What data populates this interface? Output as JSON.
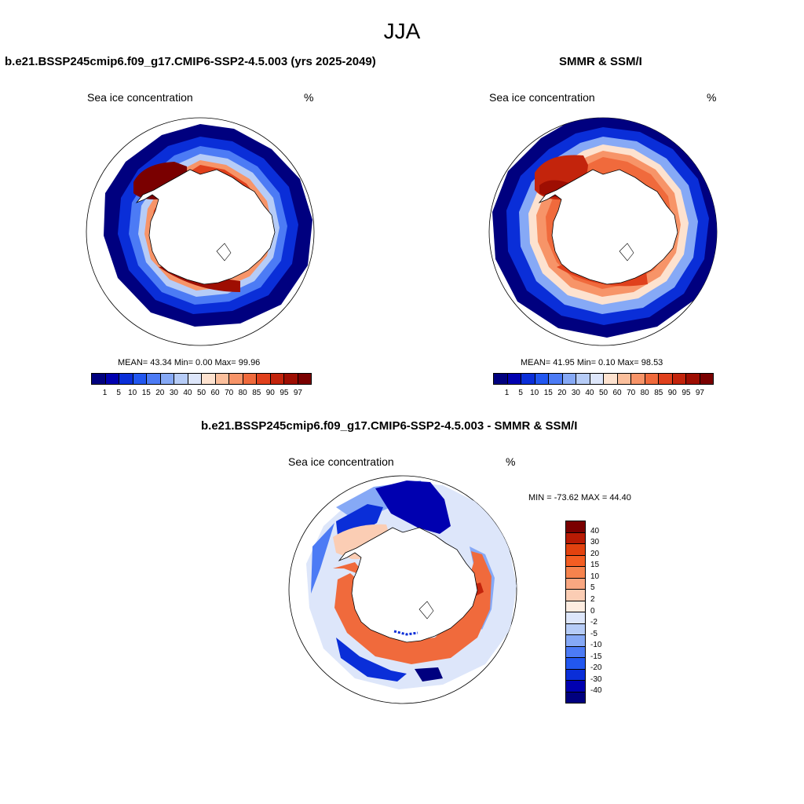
{
  "title": "JJA",
  "panels": {
    "model": {
      "title": "b.e21.BSSP245cmip6.f09_g17.CMIP6-SSP2-4.5.003 (yrs 2025-2049)",
      "variable": "Sea ice concentration",
      "units": "%",
      "stats": "MEAN=  43.34  Min=   0.00  Max=  99.96"
    },
    "obs": {
      "title": "SMMR & SSM/I",
      "variable": "Sea ice concentration",
      "units": "%",
      "stats": "MEAN=  41.95  Min=   0.10  Max=  98.53"
    },
    "diff": {
      "title": "b.e21.BSSP245cmip6.f09_g17.CMIP6-SSP2-4.5.003 - SMMR & SSM/I",
      "variable": "Sea ice concentration",
      "units": "%",
      "stats": "MIN = -73.62 MAX =  44.40"
    }
  },
  "colorbar_abs": {
    "levels": [
      "1",
      "5",
      "10",
      "15",
      "20",
      "30",
      "40",
      "50",
      "60",
      "70",
      "80",
      "85",
      "90",
      "95",
      "97"
    ],
    "colors": [
      "#00007f",
      "#0000b0",
      "#0a2ed8",
      "#2257f0",
      "#4c7bf5",
      "#86a9f6",
      "#b6ccf7",
      "#dde6fa",
      "#fde2cf",
      "#fbbf9c",
      "#f79468",
      "#f06a3c",
      "#e0401c",
      "#c3240c",
      "#9e0e02",
      "#7a0000"
    ]
  },
  "colorbar_diff": {
    "levels": [
      "40",
      "30",
      "20",
      "15",
      "10",
      "5",
      "2",
      "0",
      "-2",
      "-5",
      "-10",
      "-15",
      "-20",
      "-30",
      "-40"
    ],
    "colors": [
      "#7a0000",
      "#b81b04",
      "#e2420f",
      "#f35d22",
      "#f6834d",
      "#f9a781",
      "#fbcdb4",
      "#fdece0",
      "#dde6fa",
      "#b6ccf7",
      "#86a9f6",
      "#4c7bf5",
      "#2257f0",
      "#0a2ed8",
      "#0000b0",
      "#00007f"
    ]
  }
}
